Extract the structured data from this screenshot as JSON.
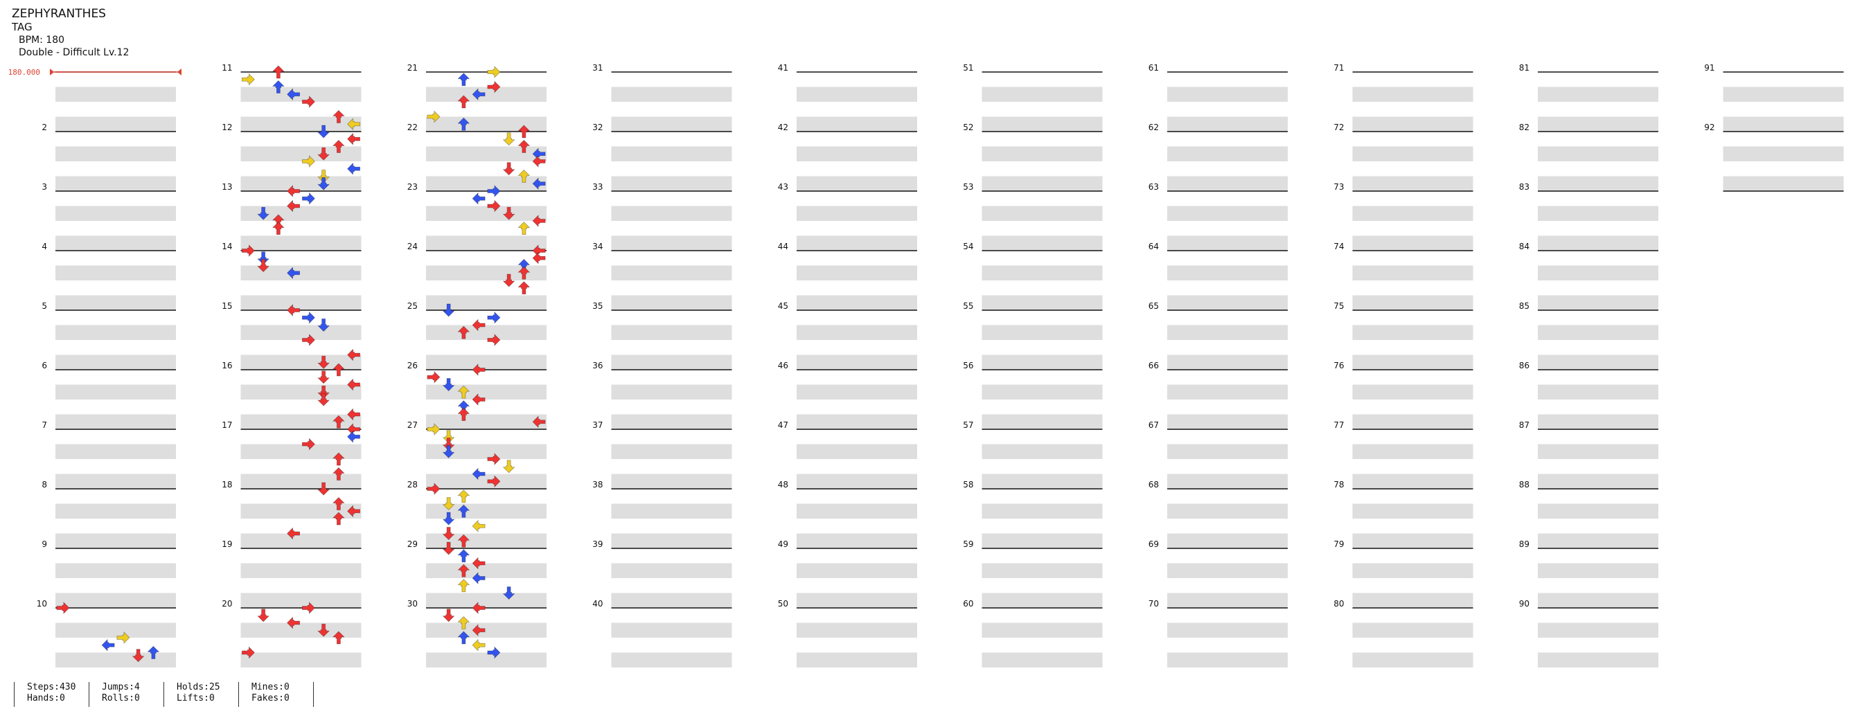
{
  "song": {
    "title": "ZEPHYRANTHES",
    "artist": "TAG",
    "bpm_label": "BPM: 180",
    "difficulty_label": "Double - Difficult Lv.12",
    "bpm_marker": "180.000"
  },
  "measures": {
    "labels": [
      "2",
      "3",
      "4",
      "5",
      "6",
      "7",
      "8",
      "9",
      "10",
      "11",
      "12",
      "13",
      "14",
      "15",
      "16",
      "17",
      "18",
      "19",
      "20",
      "21",
      "22",
      "23",
      "24",
      "25",
      "26",
      "27",
      "28",
      "29",
      "30",
      "31",
      "32",
      "33",
      "34",
      "35",
      "36",
      "37",
      "38",
      "39",
      "40",
      "41",
      "42",
      "43",
      "44",
      "45",
      "46",
      "47",
      "48",
      "49",
      "50",
      "51",
      "52",
      "53",
      "54",
      "55",
      "56",
      "57",
      "58",
      "59",
      "60",
      "61",
      "62",
      "63",
      "64",
      "65",
      "66",
      "67",
      "68",
      "69",
      "70",
      "71",
      "72",
      "73",
      "74",
      "75",
      "76",
      "77",
      "78",
      "79",
      "80",
      "81",
      "82",
      "83",
      "84",
      "85",
      "86",
      "87",
      "88",
      "89",
      "90",
      "91",
      "92"
    ],
    "total": 92,
    "per_column": 10,
    "beats_per_measure": 4
  },
  "arrow_colors": {
    "quarter": "#ee3333",
    "eighth": "#3355ee",
    "sixteenth": "#eecc22",
    "hold": "#7fe07f"
  },
  "notes": [
    [
      10,
      0,
      0,
      "r"
    ],
    [
      10,
      2,
      4,
      "y"
    ],
    [
      10,
      2.5,
      3,
      "b"
    ],
    [
      10,
      3,
      6,
      "b"
    ],
    [
      10,
      3.2,
      5,
      "r"
    ],
    [
      11,
      0,
      2,
      "r"
    ],
    [
      11,
      0.5,
      0,
      "y"
    ],
    [
      11,
      1,
      2,
      "b"
    ],
    [
      11,
      1.5,
      3,
      "b"
    ],
    [
      11,
      2,
      4,
      "r"
    ],
    [
      11,
      3,
      6,
      "r"
    ],
    [
      11,
      3.5,
      7,
      "y"
    ],
    [
      12,
      0,
      5,
      "b"
    ],
    [
      12,
      0.5,
      7,
      "r"
    ],
    [
      12,
      1,
      6,
      "r"
    ],
    [
      12,
      1.5,
      5,
      "r"
    ],
    [
      12,
      2,
      4,
      "y"
    ],
    [
      12,
      2.5,
      7,
      "b"
    ],
    [
      12,
      3,
      5,
      "y"
    ],
    [
      12,
      3.5,
      5,
      "b"
    ],
    [
      13,
      0,
      3,
      "r"
    ],
    [
      13,
      0.5,
      4,
      "b"
    ],
    [
      13,
      1,
      3,
      "r"
    ],
    [
      13,
      1.5,
      1,
      "b"
    ],
    [
      13,
      2,
      2,
      "r"
    ],
    [
      13,
      2.5,
      2,
      "r"
    ],
    [
      14,
      0,
      0,
      "r"
    ],
    [
      14,
      0.5,
      1,
      "b"
    ],
    [
      14,
      1,
      1,
      "r"
    ],
    [
      14,
      1.5,
      3,
      "b"
    ],
    [
      15,
      0,
      3,
      "r"
    ],
    [
      15,
      0.5,
      4,
      "b"
    ],
    [
      15,
      1,
      5,
      "b"
    ],
    [
      15,
      2,
      4,
      "r"
    ],
    [
      15,
      3,
      7,
      "r"
    ],
    [
      15,
      3.5,
      5,
      "r"
    ],
    [
      16,
      0,
      6,
      "r"
    ],
    [
      16,
      0.5,
      5,
      "r"
    ],
    [
      16,
      1,
      7,
      "r"
    ],
    [
      16,
      1.5,
      5,
      "r"
    ],
    [
      16,
      2,
      5,
      "r"
    ],
    [
      16,
      3,
      7,
      "r"
    ],
    [
      16,
      3.5,
      6,
      "r"
    ],
    [
      17,
      0,
      7,
      "r"
    ],
    [
      17,
      0.5,
      7,
      "b"
    ],
    [
      17,
      1,
      4,
      "r"
    ],
    [
      17,
      2,
      6,
      "r"
    ],
    [
      17,
      3,
      6,
      "r"
    ],
    [
      18,
      0,
      5,
      "r"
    ],
    [
      18,
      1,
      6,
      "r"
    ],
    [
      18,
      1.5,
      7,
      "r"
    ],
    [
      18,
      2,
      6,
      "r"
    ],
    [
      18,
      3,
      3,
      "r"
    ],
    [
      20,
      0,
      4,
      "r"
    ],
    [
      20,
      0.5,
      1,
      "r"
    ],
    [
      20,
      1,
      3,
      "r"
    ],
    [
      20,
      1.5,
      5,
      "r"
    ],
    [
      20,
      2,
      6,
      "r"
    ],
    [
      20,
      3,
      0,
      "r"
    ],
    [
      21,
      0,
      4,
      "y"
    ],
    [
      21,
      0.5,
      2,
      "b"
    ],
    [
      21,
      1,
      4,
      "r"
    ],
    [
      21,
      1.5,
      3,
      "b"
    ],
    [
      21,
      2,
      2,
      "r"
    ],
    [
      21,
      3,
      0,
      "y"
    ],
    [
      21,
      3.5,
      2,
      "b"
    ],
    [
      22,
      0,
      6,
      "r"
    ],
    [
      22,
      0.5,
      5,
      "y"
    ],
    [
      22,
      1,
      6,
      "r"
    ],
    [
      22,
      1.5,
      7,
      "b"
    ],
    [
      22,
      2,
      7,
      "r"
    ],
    [
      22,
      2.5,
      5,
      "r"
    ],
    [
      22,
      3,
      6,
      "y"
    ],
    [
      22,
      3.5,
      7,
      "b"
    ],
    [
      23,
      0,
      4,
      "b"
    ],
    [
      23,
      0.5,
      3,
      "b"
    ],
    [
      23,
      1,
      4,
      "r"
    ],
    [
      23,
      1.5,
      5,
      "r"
    ],
    [
      23,
      2,
      7,
      "r"
    ],
    [
      23,
      2.5,
      6,
      "y"
    ],
    [
      24,
      0,
      7,
      "r"
    ],
    [
      24,
      0.5,
      7,
      "r"
    ],
    [
      24,
      1,
      6,
      "b"
    ],
    [
      24,
      1.5,
      6,
      "r"
    ],
    [
      24,
      2,
      5,
      "r"
    ],
    [
      24,
      2.5,
      6,
      "r"
    ],
    [
      25,
      0,
      1,
      "b"
    ],
    [
      25,
      0.5,
      4,
      "b"
    ],
    [
      25,
      1,
      3,
      "r"
    ],
    [
      25,
      1.5,
      2,
      "r"
    ],
    [
      25,
      2,
      4,
      "r"
    ],
    [
      26,
      0,
      3,
      "r"
    ],
    [
      26,
      0.5,
      0,
      "r"
    ],
    [
      26,
      1,
      1,
      "b"
    ],
    [
      26,
      1.5,
      2,
      "y"
    ],
    [
      26,
      2,
      3,
      "r"
    ],
    [
      26,
      2.5,
      2,
      "b"
    ],
    [
      26,
      3,
      2,
      "r"
    ],
    [
      26,
      3.5,
      7,
      "r"
    ],
    [
      27,
      0,
      0,
      "y"
    ],
    [
      27,
      0.5,
      1,
      "y"
    ],
    [
      27,
      1,
      1,
      "r"
    ],
    [
      27,
      1.5,
      1,
      "b"
    ],
    [
      27,
      2,
      4,
      "r"
    ],
    [
      27,
      2.5,
      5,
      "y"
    ],
    [
      27,
      3,
      3,
      "b"
    ],
    [
      27,
      3.5,
      4,
      "r"
    ],
    [
      28,
      0,
      0,
      "r"
    ],
    [
      28,
      0.5,
      2,
      "y"
    ],
    [
      28,
      1,
      1,
      "y"
    ],
    [
      28,
      1.5,
      2,
      "b"
    ],
    [
      28,
      2,
      1,
      "b"
    ],
    [
      28,
      2.5,
      3,
      "y"
    ],
    [
      28,
      3,
      1,
      "r"
    ],
    [
      28,
      3.5,
      2,
      "r"
    ],
    [
      29,
      0,
      1,
      "r"
    ],
    [
      29,
      0.5,
      2,
      "b"
    ],
    [
      29,
      1,
      3,
      "r"
    ],
    [
      29,
      1.5,
      2,
      "r"
    ],
    [
      29,
      2,
      3,
      "b"
    ],
    [
      29,
      2.5,
      2,
      "y"
    ],
    [
      29,
      3,
      5,
      "b"
    ],
    [
      30,
      0,
      3,
      "r"
    ],
    [
      30,
      0.5,
      1,
      "r"
    ],
    [
      30,
      1,
      2,
      "y"
    ],
    [
      30,
      1.5,
      3,
      "r"
    ],
    [
      30,
      2,
      2,
      "b"
    ],
    [
      30,
      2.5,
      3,
      "y"
    ],
    [
      30,
      3,
      4,
      "b"
    ]
  ],
  "stats": {
    "steps": "Steps:430",
    "hands": "Hands:0",
    "jumps": "Jumps:4",
    "rolls": "Rolls:0",
    "holds": "Holds:25",
    "lifts": "Lifts:0",
    "mines": "Mines:0",
    "fakes": "Fakes:0"
  }
}
